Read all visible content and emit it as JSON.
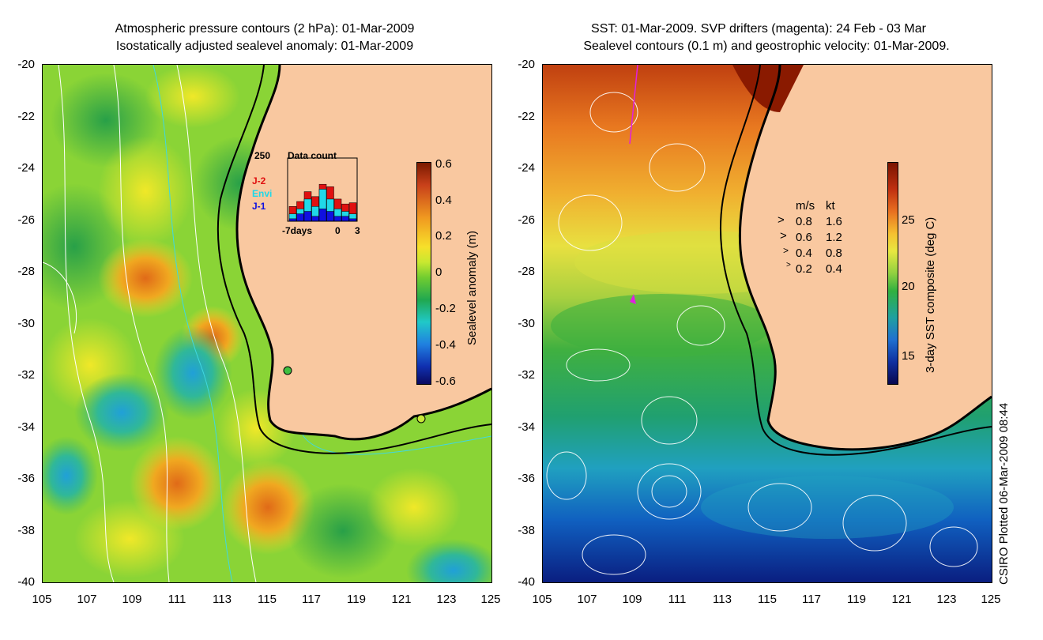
{
  "left_panel": {
    "title_line1": "Atmospheric pressure contours (2 hPa): 01-Mar-2009",
    "title_line2": "Isostatically adjusted sealevel anomaly: 01-Mar-2009",
    "y_ticks": [
      "-20",
      "-22",
      "-24",
      "-26",
      "-28",
      "-30",
      "-32",
      "-34",
      "-36",
      "-38",
      "-40"
    ],
    "x_ticks": [
      "105",
      "107",
      "109",
      "111",
      "113",
      "115",
      "117",
      "119",
      "121",
      "123",
      "125"
    ],
    "colorbar": {
      "title": "Sealevel anomaly (m)",
      "ticks": [
        "0.6",
        "0.4",
        "0.2",
        "0",
        "-0.2",
        "-0.4",
        "-0.6"
      ],
      "colors": [
        "#7a1a00",
        "#c8401a",
        "#f09a20",
        "#f7e02a",
        "#c8e830",
        "#70cc30",
        "#20a850",
        "#20c8c8",
        "#2080e0",
        "#1030b0",
        "#0a0a60"
      ]
    },
    "inset": {
      "ymax_label": "250",
      "title": "Data count",
      "legend": [
        {
          "label": "J-2",
          "color": "#e01010"
        },
        {
          "label": "Envi",
          "color": "#20d8e8"
        },
        {
          "label": "J-1",
          "color": "#1010e0"
        }
      ],
      "x_labels": [
        "-7days",
        "0",
        "3"
      ],
      "bars_j2": [
        60,
        80,
        120,
        100,
        150,
        140,
        90,
        70,
        75
      ],
      "bars_envi": [
        30,
        50,
        90,
        60,
        130,
        90,
        50,
        40,
        30
      ],
      "bars_j1": [
        10,
        30,
        40,
        20,
        50,
        40,
        20,
        20,
        10
      ]
    }
  },
  "right_panel": {
    "title_line1": "SST: 01-Mar-2009. SVP drifters (magenta): 24 Feb - 03 Mar",
    "title_line2": "Sealevel contours (0.1 m) and geostrophic velocity: 01-Mar-2009.",
    "y_ticks": [
      "-20",
      "-22",
      "-24",
      "-26",
      "-28",
      "-30",
      "-32",
      "-34",
      "-36",
      "-38",
      "-40"
    ],
    "x_ticks": [
      "105",
      "107",
      "109",
      "111",
      "113",
      "115",
      "117",
      "119",
      "121",
      "123",
      "125"
    ],
    "colorbar": {
      "title": "3-day SST composite (deg C)",
      "ticks": [
        "25",
        "20",
        "15"
      ],
      "colors": [
        "#7a1400",
        "#c03010",
        "#e87020",
        "#f5c030",
        "#e8e840",
        "#90d040",
        "#30b040",
        "#20a0a0",
        "#2070d0",
        "#1030a0",
        "#080850"
      ]
    },
    "velocity_legend": {
      "header_ms": "m/s",
      "header_kt": "kt",
      "rows": [
        {
          "ms": "0.8",
          "kt": "1.6"
        },
        {
          "ms": "0.6",
          "kt": "1.2"
        },
        {
          "ms": "0.4",
          "kt": "0.8"
        },
        {
          "ms": "0.2",
          "kt": "0.4"
        }
      ]
    }
  },
  "credit": "CSIRO Plotted 06-Mar-2009 08:44",
  "colors": {
    "land": "#f9c8a0",
    "coast": "#000000",
    "pressure_contour": "#ffffff",
    "isobath": "#40d8e0",
    "drifter": "#e020e0"
  }
}
